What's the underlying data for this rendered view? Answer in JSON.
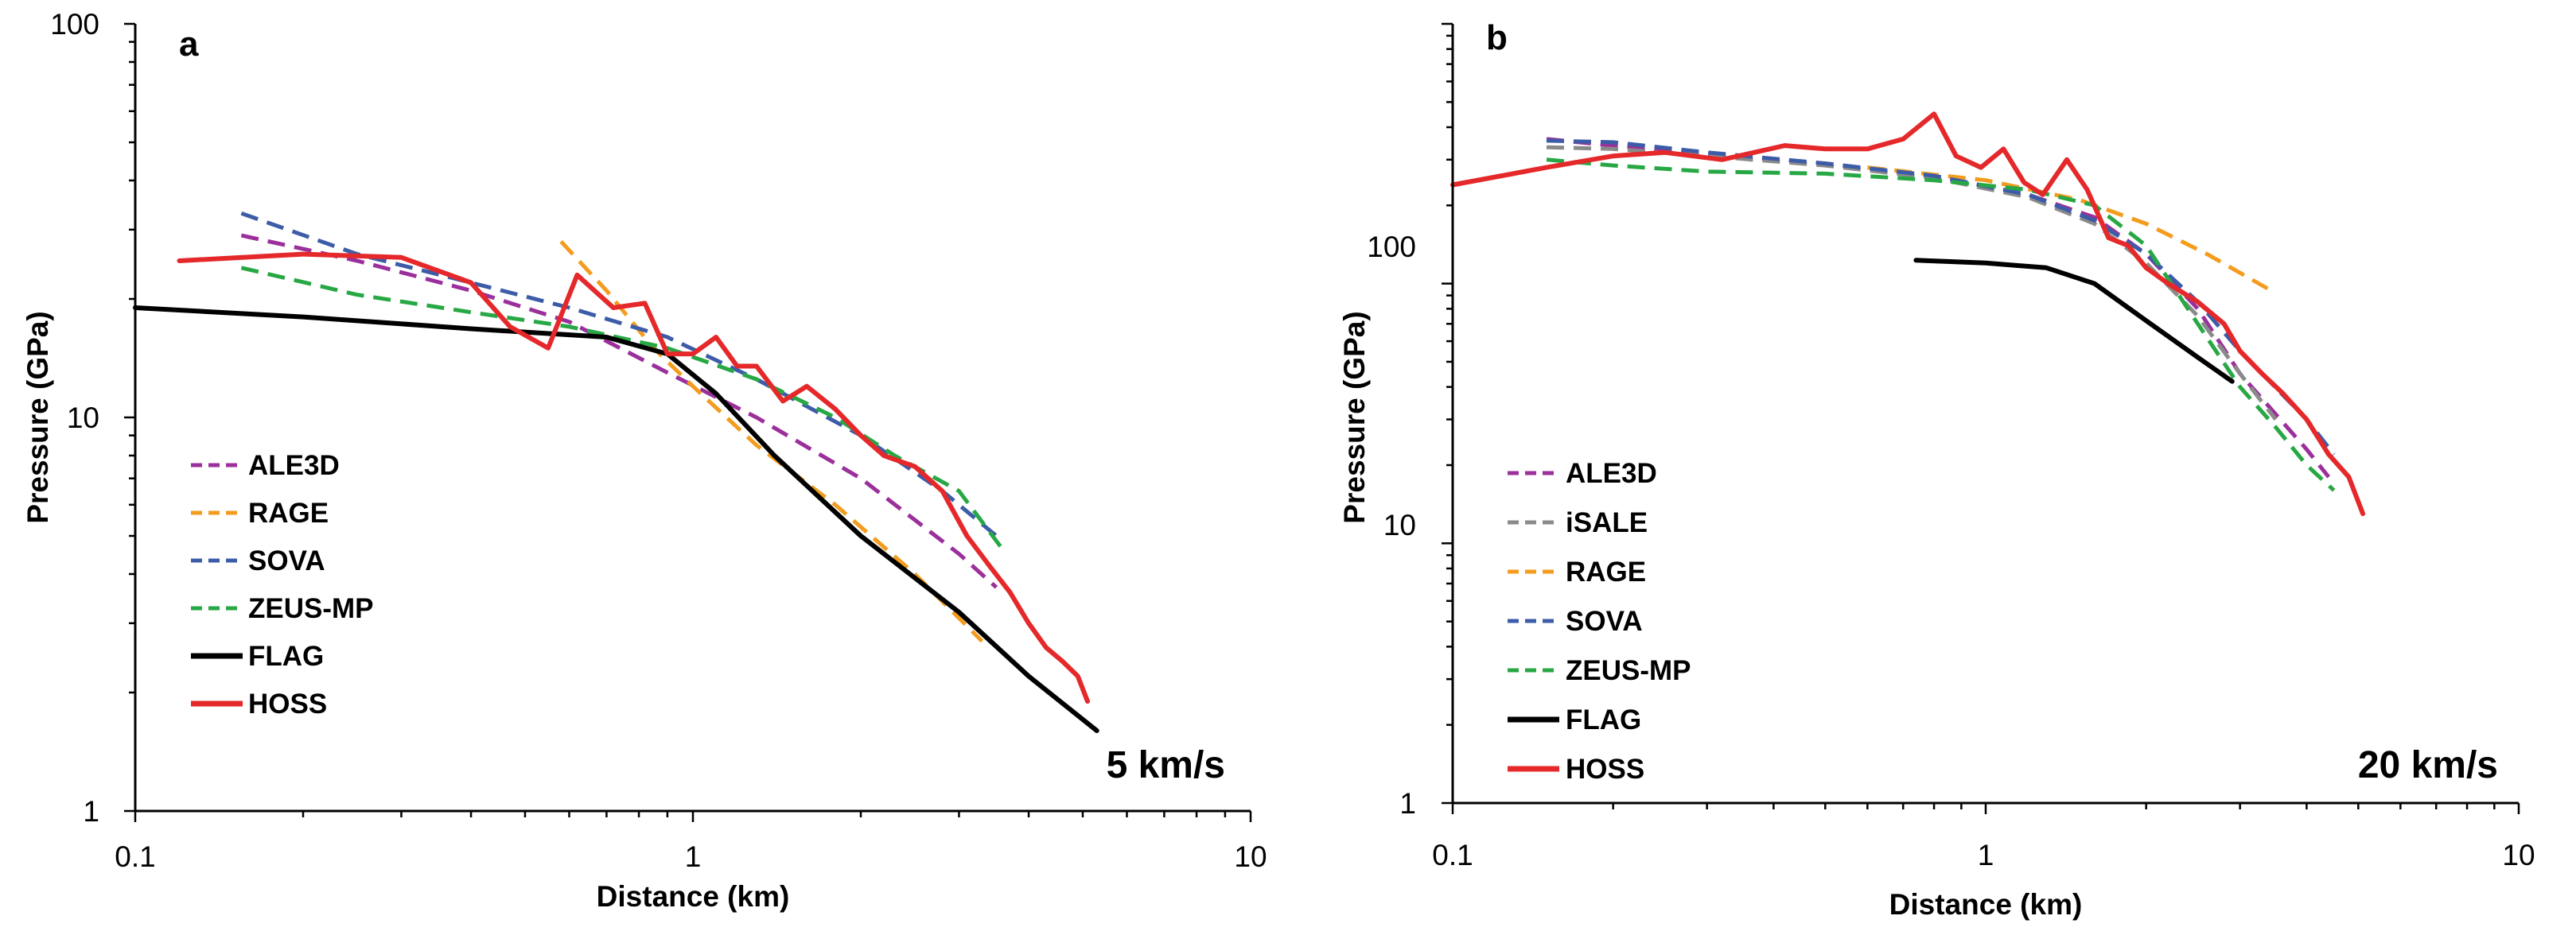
{
  "chart_data": [
    {
      "type": "line",
      "panel": "a",
      "annotation": "5 km/s",
      "xlabel": "Distance (km)",
      "ylabel": "Pressure (GPa)",
      "xscale": "log",
      "yscale": "log",
      "xlim": [
        0.1,
        10
      ],
      "ylim": [
        1,
        100
      ],
      "xticks": [
        "0.1",
        "1",
        "10"
      ],
      "yticks": [
        "1",
        "10",
        "100"
      ],
      "legend_position": "bottom-left",
      "series": [
        {
          "name": "ALE3D",
          "color": "#9b2f9b",
          "style": "dashed",
          "x": [
            0.155,
            0.25,
            0.4,
            0.6,
            0.9,
            1.3,
            2,
            3,
            3.5
          ],
          "y": [
            29,
            25,
            21,
            17.5,
            13,
            10,
            7,
            4.5,
            3.7
          ]
        },
        {
          "name": "RAGE",
          "color": "#f39c1e",
          "style": "dashed",
          "x": [
            0.58,
            0.7,
            0.85,
            1,
            1.3,
            1.8,
            2.5,
            3.3
          ],
          "y": [
            28,
            21,
            15,
            12,
            8.5,
            6,
            4,
            2.7
          ]
        },
        {
          "name": "SOVA",
          "color": "#3d5ca8",
          "style": "dashed",
          "x": [
            0.155,
            0.25,
            0.4,
            0.6,
            0.9,
            1.3,
            2,
            2.8,
            3.5
          ],
          "y": [
            33,
            26,
            22,
            19,
            16,
            12.5,
            9,
            6.5,
            5
          ]
        },
        {
          "name": "ZEUS-MP",
          "color": "#27a844",
          "style": "dashed",
          "x": [
            0.155,
            0.25,
            0.4,
            0.6,
            0.9,
            1.3,
            1.8,
            2.3,
            3,
            3.6
          ],
          "y": [
            24,
            20.5,
            18.5,
            17,
            15,
            12.5,
            10,
            8,
            6.5,
            4.6
          ]
        },
        {
          "name": "FLAG",
          "color": "#000000",
          "style": "solid",
          "x": [
            0.1,
            0.2,
            0.4,
            0.7,
            0.9,
            1.1,
            1.4,
            2,
            3,
            4,
            5.3
          ],
          "y": [
            19,
            18,
            16.8,
            16,
            14.5,
            11.5,
            8,
            5,
            3.2,
            2.2,
            1.6
          ]
        },
        {
          "name": "HOSS",
          "color": "#e5282a",
          "style": "solid",
          "x": [
            0.12,
            0.2,
            0.3,
            0.4,
            0.47,
            0.55,
            0.62,
            0.72,
            0.82,
            0.9,
            1,
            1.1,
            1.2,
            1.3,
            1.45,
            1.6,
            1.8,
            2,
            2.2,
            2.5,
            2.8,
            3.1,
            3.4,
            3.7,
            4,
            4.3,
            4.6,
            4.9,
            5.1
          ],
          "y": [
            25,
            26,
            25.5,
            22,
            17,
            15,
            23,
            19,
            19.5,
            14.5,
            14.5,
            16,
            13.5,
            13.5,
            11,
            12,
            10.5,
            9,
            8,
            7.5,
            6.5,
            5,
            4.2,
            3.6,
            3,
            2.6,
            2.4,
            2.2,
            1.9
          ]
        }
      ]
    },
    {
      "type": "line",
      "panel": "b",
      "annotation": "20 km/s",
      "xlabel": "Distance (km)",
      "ylabel": "Pressure (GPa)",
      "xscale": "log",
      "yscale": "log",
      "xlim": [
        0.1,
        10
      ],
      "ylim": [
        1,
        1000
      ],
      "xticks": [
        "0.1",
        "1",
        "10"
      ],
      "yticks": [
        "1",
        "10",
        "100"
      ],
      "legend_position": "bottom-left",
      "series": [
        {
          "name": "ALE3D",
          "color": "#9b2f9b",
          "style": "dashed",
          "x": [
            0.15,
            0.2,
            0.3,
            0.5,
            0.8,
            1.2,
            1.6,
            2,
            2.5,
            3,
            4,
            4.4
          ],
          "y": [
            360,
            340,
            315,
            290,
            260,
            220,
            180,
            130,
            80,
            45,
            23,
            18
          ]
        },
        {
          "name": "iSALE",
          "color": "#8a8a8a",
          "style": "dashed",
          "x": [
            0.15,
            0.2,
            0.3,
            0.5,
            0.8,
            1.2,
            1.6,
            2,
            2.5,
            3,
            3.5
          ],
          "y": [
            335,
            330,
            310,
            285,
            255,
            215,
            170,
            120,
            75,
            45,
            30
          ]
        },
        {
          "name": "RAGE",
          "color": "#f39c1e",
          "style": "dashed",
          "x": [
            0.6,
            1,
            1.5,
            2,
            2.6,
            3.4
          ],
          "y": [
            280,
            250,
            210,
            170,
            130,
            95
          ]
        },
        {
          "name": "SOVA",
          "color": "#3d5ca8",
          "style": "dashed",
          "x": [
            0.15,
            0.2,
            0.3,
            0.5,
            0.8,
            1.2,
            1.6,
            2,
            2.5,
            3,
            4,
            4.5
          ],
          "y": [
            355,
            350,
            320,
            290,
            260,
            220,
            175,
            130,
            85,
            55,
            30,
            22
          ]
        },
        {
          "name": "ZEUS-MP",
          "color": "#27a844",
          "style": "dashed",
          "x": [
            0.15,
            0.2,
            0.3,
            0.5,
            0.8,
            1.2,
            1.6,
            2,
            2.5,
            3,
            3.5,
            4,
            4.5
          ],
          "y": [
            300,
            285,
            270,
            265,
            250,
            230,
            200,
            140,
            70,
            40,
            28,
            20,
            16
          ]
        },
        {
          "name": "FLAG",
          "color": "#000000",
          "style": "solid",
          "x": [
            0.74,
            1,
            1.3,
            1.6,
            2,
            2.5,
            2.9
          ],
          "y": [
            123,
            120,
            115,
            100,
            72,
            52,
            42
          ]
        },
        {
          "name": "HOSS",
          "color": "#e5282a",
          "style": "solid",
          "x": [
            0.1,
            0.15,
            0.2,
            0.25,
            0.32,
            0.42,
            0.5,
            0.6,
            0.7,
            0.8,
            0.88,
            0.98,
            1.08,
            1.18,
            1.28,
            1.42,
            1.55,
            1.7,
            1.85,
            2,
            2.2,
            2.5,
            2.8,
            3,
            3.3,
            3.6,
            4,
            4.4,
            4.8,
            5.1
          ],
          "y": [
            240,
            280,
            310,
            320,
            300,
            340,
            330,
            330,
            360,
            450,
            310,
            280,
            330,
            245,
            220,
            300,
            230,
            150,
            140,
            115,
            100,
            85,
            70,
            55,
            45,
            38,
            30,
            22,
            18,
            13
          ]
        }
      ]
    }
  ]
}
